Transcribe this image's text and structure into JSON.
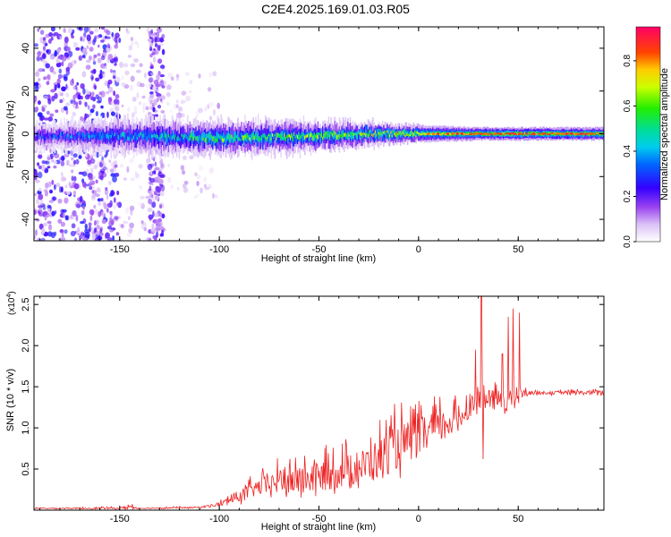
{
  "title": "C2E4.2025.169.01.03.R05",
  "chart_data": [
    {
      "type": "heatmap",
      "name": "spectrogram",
      "xlabel": "Height of straight line (km)",
      "ylabel": "Frequency (Hz)",
      "xlim": [
        -193,
        93
      ],
      "ylim": [
        -50,
        50
      ],
      "xticks": [
        -150,
        -100,
        -50,
        0,
        50
      ],
      "yticks": [
        -40,
        -20,
        0,
        20,
        40
      ],
      "xtick_labels": [
        "-150",
        "-100",
        "-50",
        "0",
        "50"
      ],
      "ytick_labels": [
        "-40",
        "-20",
        "0",
        "20",
        "40"
      ],
      "colorbar": {
        "label": "Normalized spectral amplitude",
        "range": [
          0,
          0.95
        ],
        "ticks": [
          0,
          0.2,
          0.4,
          0.6,
          0.8
        ],
        "tick_labels": [
          "0.0",
          "0.2",
          "0.4",
          "0.6",
          "0.8"
        ]
      },
      "description_bands": [
        {
          "x": [
            -193,
            -150
          ],
          "f_spread": 50,
          "amp": [
            0.05,
            0.3
          ],
          "density": "high"
        },
        {
          "x": [
            -150,
            -135
          ],
          "f_spread": 50,
          "amp": [
            0.02,
            0.12
          ],
          "density": "low"
        },
        {
          "x": [
            -135,
            -128
          ],
          "f_spread": 50,
          "amp": [
            0.05,
            0.25
          ],
          "density": "medium"
        },
        {
          "x": [
            -128,
            -100
          ],
          "f_spread": 30,
          "amp": [
            0.02,
            0.12
          ],
          "density": "low"
        }
      ],
      "ridge": {
        "x": [
          -193,
          -150,
          -100,
          -50,
          -20,
          0,
          30,
          50,
          93
        ],
        "center_hz": [
          -1,
          -1,
          -2,
          -1,
          0,
          0,
          0,
          0,
          0
        ],
        "half_width_hz": [
          6,
          8,
          8,
          7,
          5,
          4,
          3,
          3,
          3
        ],
        "peak_amp": [
          0.3,
          0.4,
          0.55,
          0.6,
          0.65,
          0.75,
          0.85,
          0.9,
          0.85
        ]
      }
    },
    {
      "type": "line",
      "name": "snr",
      "xlabel": "Height of straight line (km)",
      "ylabel": "SNR (10 * v/v)",
      "scale_label": "(x10",
      "scale_exp": "4",
      "scale_close": ")",
      "xlim": [
        -193,
        93
      ],
      "ylim": [
        0,
        2.6
      ],
      "xticks": [
        -150,
        -100,
        -50,
        0,
        50
      ],
      "yticks": [
        0.5,
        1.0,
        1.5,
        2.0,
        2.5
      ],
      "xtick_labels": [
        "-150",
        "-100",
        "-50",
        "0",
        "50"
      ],
      "ytick_labels": [
        "0.5",
        "1.0",
        "1.5",
        "2.0",
        "2.5"
      ],
      "color": "#ee2222",
      "envelope": {
        "x": [
          -193,
          -150,
          -145,
          -140,
          -110,
          -100,
          -90,
          -80,
          -70,
          -60,
          -50,
          -40,
          -30,
          -20,
          -10,
          0,
          10,
          20,
          25,
          28,
          32,
          35,
          40,
          45,
          50,
          53,
          55,
          60,
          70,
          80,
          93
        ],
        "base": [
          0.02,
          0.02,
          0.03,
          0.02,
          0.03,
          0.06,
          0.15,
          0.25,
          0.3,
          0.3,
          0.35,
          0.4,
          0.45,
          0.55,
          0.7,
          0.8,
          0.95,
          1.05,
          1.2,
          1.3,
          1.3,
          1.3,
          1.3,
          1.3,
          1.35,
          1.4,
          1.42,
          1.42,
          1.42,
          1.42,
          1.42
        ],
        "noise": [
          0.01,
          0.02,
          0.06,
          0.01,
          0.02,
          0.05,
          0.15,
          0.2,
          0.3,
          0.35,
          0.35,
          0.4,
          0.4,
          0.5,
          0.55,
          0.45,
          0.4,
          0.3,
          0.25,
          0.2,
          0.3,
          0.25,
          0.25,
          0.3,
          0.3,
          0.1,
          0.04,
          0.04,
          0.04,
          0.05,
          0.06
        ]
      },
      "spikes": [
        {
          "x": 28.5,
          "y": 1.95
        },
        {
          "x": 31.5,
          "y": 2.6
        },
        {
          "x": 32.5,
          "y": 0.62
        },
        {
          "x": 45,
          "y": 2.35
        },
        {
          "x": 47.5,
          "y": 2.45
        },
        {
          "x": 50.5,
          "y": 2.4
        },
        {
          "x": 42,
          "y": 1.9
        }
      ]
    }
  ]
}
